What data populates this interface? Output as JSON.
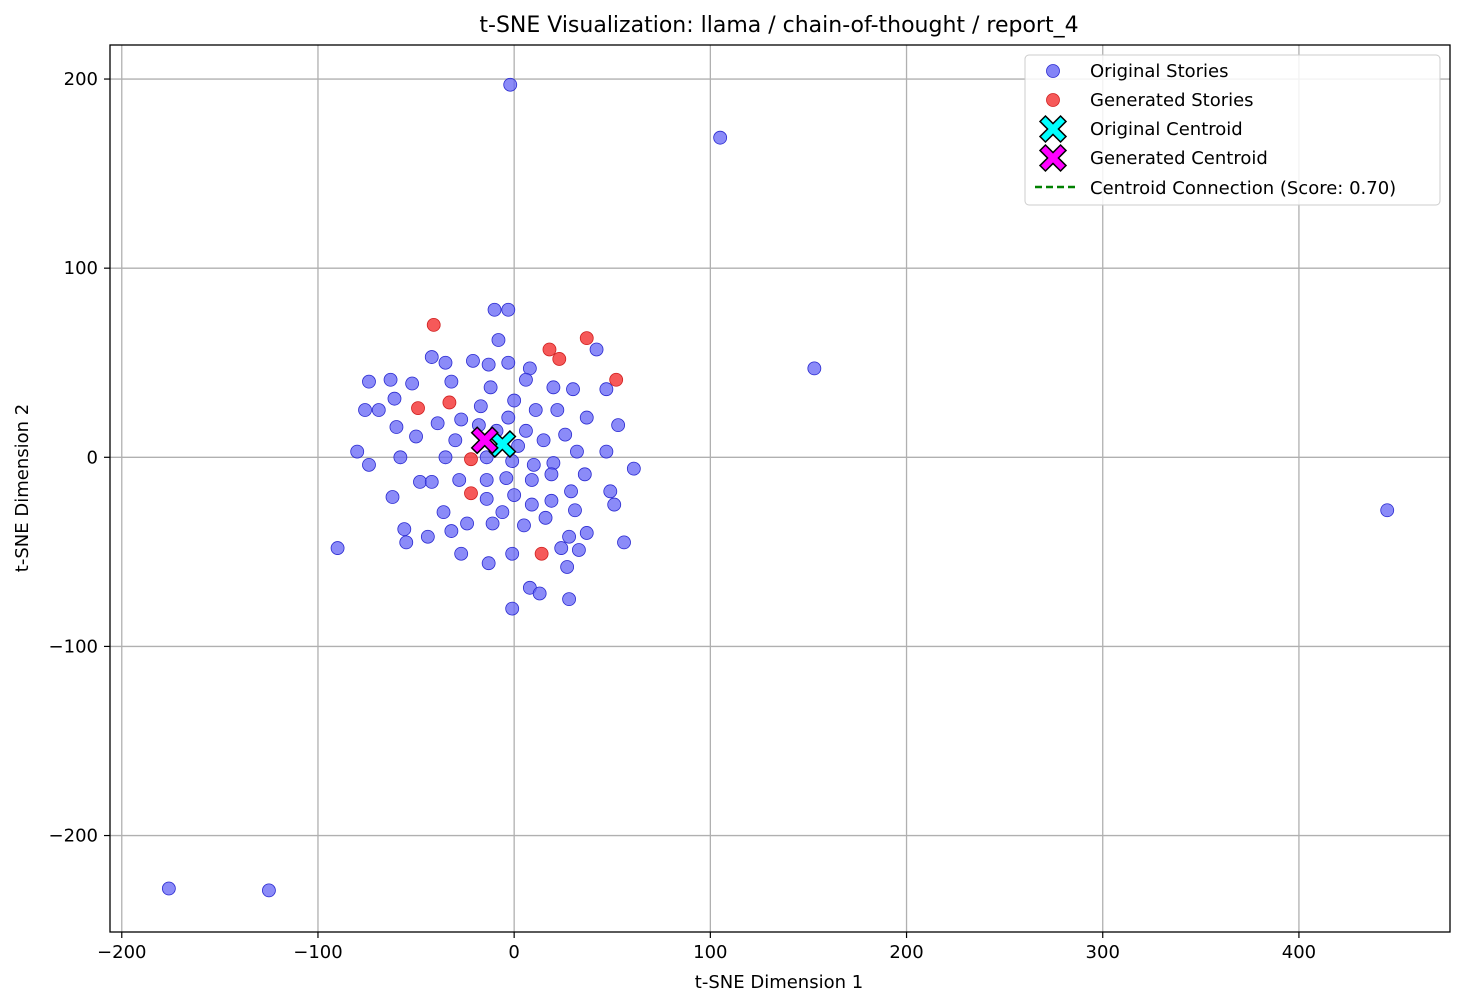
{
  "chart_data": {
    "type": "scatter",
    "title": "t-SNE Visualization: llama / chain-of-thought / report_4",
    "xlabel": "t-SNE Dimension 1",
    "ylabel": "t-SNE Dimension 2",
    "xlim": [
      -206,
      477
    ],
    "ylim": [
      -251,
      218
    ],
    "xticks": [
      -200,
      -100,
      0,
      100,
      200,
      300,
      400
    ],
    "yticks": [
      -200,
      -100,
      0,
      100,
      200
    ],
    "xtick_labels": [
      "−200",
      "−100",
      "0",
      "100",
      "200",
      "300",
      "400"
    ],
    "ytick_labels": [
      "−200",
      "−100",
      "0",
      "100",
      "200"
    ],
    "grid": true,
    "legend_position": "top-right",
    "colors": {
      "original": "#6464f5",
      "generated": "#f53c3c",
      "original_centroid": "#00ffff",
      "generated_centroid": "#ff00ff",
      "connection": "#008000"
    },
    "series": [
      {
        "name": "Original Stories",
        "points": [
          [
            -2,
            197
          ],
          [
            105,
            169
          ],
          [
            153,
            47
          ],
          [
            445,
            -28
          ],
          [
            -176,
            -228
          ],
          [
            -125,
            -229
          ],
          [
            -90,
            -48
          ],
          [
            -10,
            78
          ],
          [
            -3,
            78
          ],
          [
            -8,
            62
          ],
          [
            42,
            57
          ],
          [
            -42,
            53
          ],
          [
            -35,
            50
          ],
          [
            -21,
            51
          ],
          [
            -13,
            49
          ],
          [
            -3,
            50
          ],
          [
            8,
            47
          ],
          [
            -74,
            40
          ],
          [
            -63,
            41
          ],
          [
            -52,
            39
          ],
          [
            -32,
            40
          ],
          [
            -12,
            37
          ],
          [
            6,
            41
          ],
          [
            20,
            37
          ],
          [
            30,
            36
          ],
          [
            47,
            36
          ],
          [
            -69,
            25
          ],
          [
            -76,
            25
          ],
          [
            -61,
            31
          ],
          [
            0,
            30
          ],
          [
            -17,
            27
          ],
          [
            11,
            25
          ],
          [
            22,
            25
          ],
          [
            37,
            21
          ],
          [
            -27,
            20
          ],
          [
            -39,
            18
          ],
          [
            -60,
            16
          ],
          [
            -3,
            21
          ],
          [
            53,
            17
          ],
          [
            -18,
            17
          ],
          [
            -50,
            11
          ],
          [
            -30,
            9
          ],
          [
            6,
            14
          ],
          [
            15,
            9
          ],
          [
            26,
            12
          ],
          [
            -9,
            14
          ],
          [
            -80,
            3
          ],
          [
            -58,
            0
          ],
          [
            -74,
            -4
          ],
          [
            -35,
            0
          ],
          [
            -14,
            0
          ],
          [
            2,
            6
          ],
          [
            32,
            3
          ],
          [
            47,
            3
          ],
          [
            -1,
            -2
          ],
          [
            10,
            -4
          ],
          [
            20,
            -3
          ],
          [
            61,
            -6
          ],
          [
            36,
            -9
          ],
          [
            -48,
            -13
          ],
          [
            -42,
            -13
          ],
          [
            -28,
            -12
          ],
          [
            -14,
            -12
          ],
          [
            -4,
            -11
          ],
          [
            9,
            -12
          ],
          [
            19,
            -9
          ],
          [
            29,
            -18
          ],
          [
            49,
            -18
          ],
          [
            -62,
            -21
          ],
          [
            -14,
            -22
          ],
          [
            0,
            -20
          ],
          [
            9,
            -25
          ],
          [
            19,
            -23
          ],
          [
            51,
            -25
          ],
          [
            -36,
            -29
          ],
          [
            -6,
            -29
          ],
          [
            16,
            -32
          ],
          [
            31,
            -28
          ],
          [
            -56,
            -38
          ],
          [
            -32,
            -39
          ],
          [
            -24,
            -35
          ],
          [
            -11,
            -35
          ],
          [
            5,
            -36
          ],
          [
            37,
            -40
          ],
          [
            -44,
            -42
          ],
          [
            -55,
            -45
          ],
          [
            -27,
            -51
          ],
          [
            -1,
            -51
          ],
          [
            24,
            -48
          ],
          [
            33,
            -49
          ],
          [
            56,
            -45
          ],
          [
            28,
            -42
          ],
          [
            -13,
            -56
          ],
          [
            27,
            -58
          ],
          [
            8,
            -69
          ],
          [
            13,
            -72
          ],
          [
            28,
            -75
          ],
          [
            -1,
            -80
          ]
        ]
      },
      {
        "name": "Generated Stories",
        "points": [
          [
            -41,
            70
          ],
          [
            37,
            63
          ],
          [
            18,
            57
          ],
          [
            23,
            52
          ],
          [
            52,
            41
          ],
          [
            -33,
            29
          ],
          [
            -49,
            26
          ],
          [
            -22,
            -1
          ],
          [
            -22,
            -19
          ],
          [
            14,
            -51
          ]
        ]
      },
      {
        "name": "Original Centroid",
        "points": [
          [
            -6,
            7
          ]
        ]
      },
      {
        "name": "Generated Centroid",
        "points": [
          [
            -15,
            9
          ]
        ]
      }
    ],
    "connection_label": "Centroid Connection (Score: 0.70)"
  }
}
